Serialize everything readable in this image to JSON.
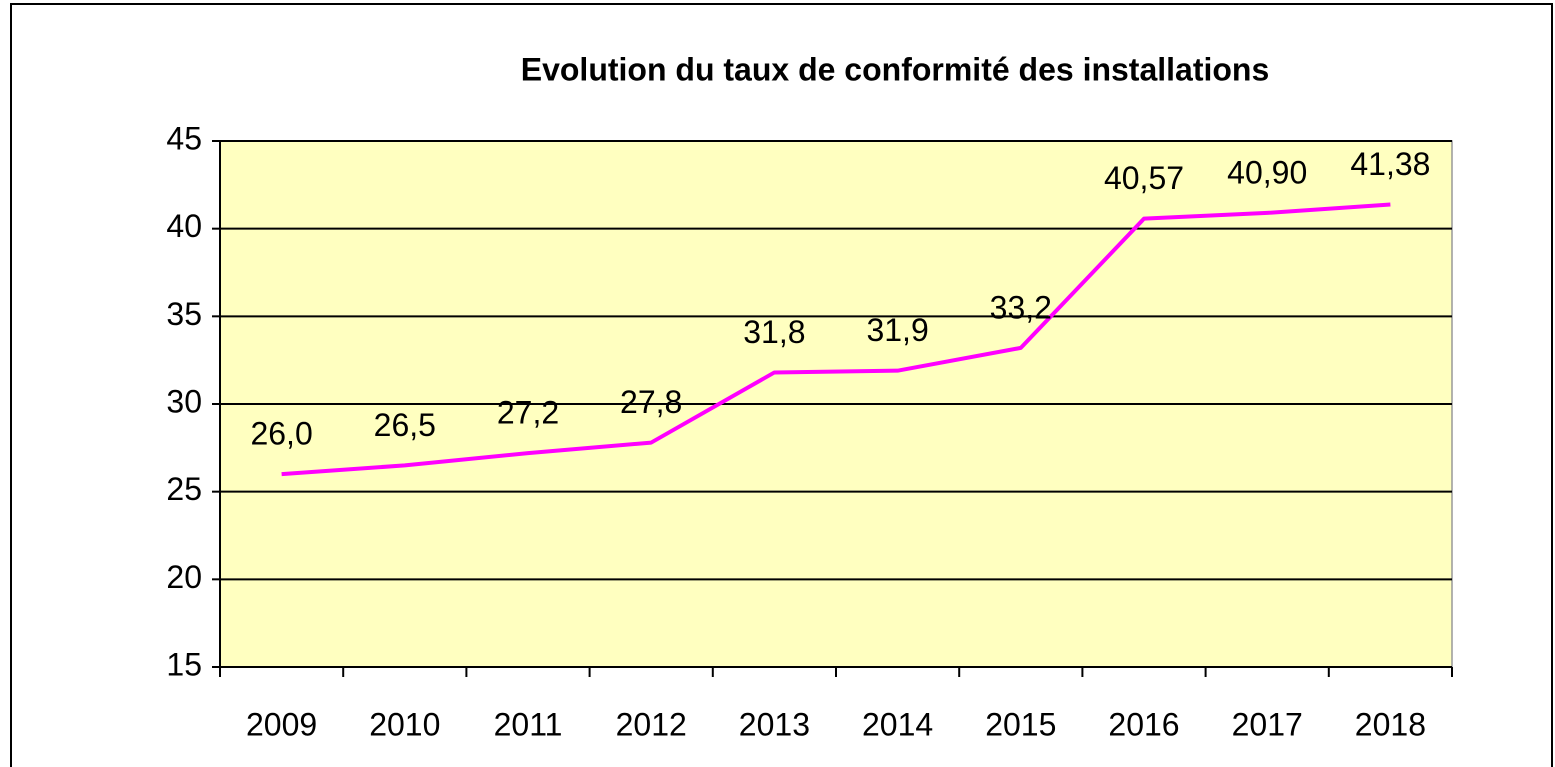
{
  "chart_data": {
    "type": "line",
    "title": "Evolution du taux de conformité des installations",
    "categories": [
      "2009",
      "2010",
      "2011",
      "2012",
      "2013",
      "2014",
      "2015",
      "2016",
      "2017",
      "2018"
    ],
    "values": [
      26.0,
      26.5,
      27.2,
      27.8,
      31.8,
      31.9,
      33.2,
      40.57,
      40.9,
      41.38
    ],
    "value_labels": [
      "26,0",
      "26,5",
      "27,2",
      "27,8",
      "31,8",
      "31,9",
      "33,2",
      "40,57",
      "40,90",
      "41,38"
    ],
    "color": "#ff00ff",
    "ylim": [
      15,
      45
    ],
    "yticks": [
      15,
      20,
      25,
      30,
      35,
      40,
      45
    ],
    "grid": true
  }
}
